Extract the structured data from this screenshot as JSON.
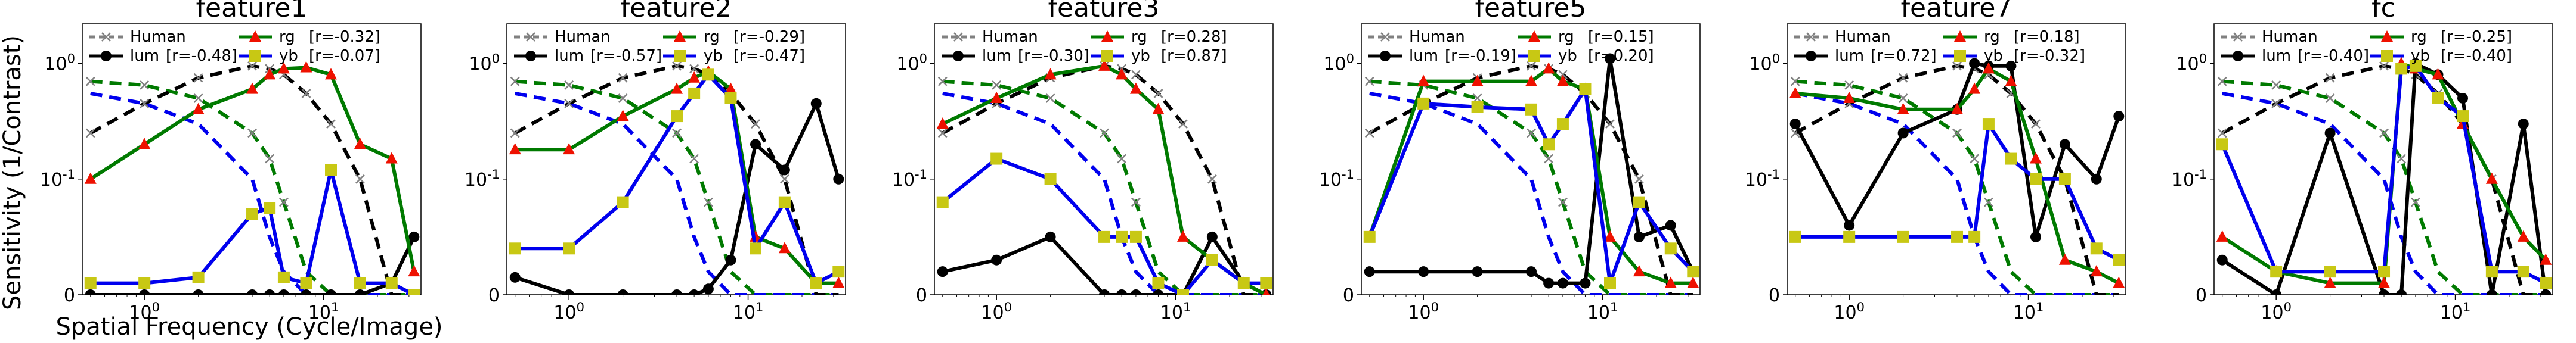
{
  "figure": {
    "ylabel": "Sensitivity (1/Contrast)",
    "xlabel": "Spatial Frequency (Cycle/Image)"
  },
  "colors": {
    "human": "#808080",
    "lum": "#000000",
    "rg": "#007a00",
    "yb": "#0000ee",
    "rg_marker": "#ee1100",
    "yb_marker": "#c8c814"
  },
  "chart_data": [
    {
      "type": "line",
      "title": "feature1",
      "xscale": "log",
      "yscale": "symlog",
      "xlim": [
        0.45,
        35
      ],
      "ylim": [
        0,
        2.2
      ],
      "xticks": [
        "10^0",
        "10^1"
      ],
      "yticks": [
        "0",
        "10^-1",
        "10^0"
      ],
      "legend": [
        {
          "key": "human",
          "label": "Human",
          "r": ""
        },
        {
          "key": "lum",
          "label": "lum",
          "r": "[r=-0.48]"
        },
        {
          "key": "rg",
          "label": "rg",
          "r": "[r=-0.32]"
        },
        {
          "key": "yb",
          "label": "yb",
          "r": "[r=-0.07]"
        }
      ],
      "x": [
        0.5,
        1,
        2,
        4,
        5,
        6,
        8,
        11,
        16,
        24,
        32
      ],
      "human": {
        "lum": [
          0.25,
          0.45,
          0.75,
          0.95,
          0.9,
          0.8,
          0.55,
          0.3,
          0.1,
          0.0,
          0.0
        ],
        "rg": [
          0.7,
          0.65,
          0.5,
          0.25,
          0.15,
          0.08,
          0.02,
          0.0,
          0.0,
          0.0,
          0.0
        ],
        "yb": [
          0.55,
          0.45,
          0.3,
          0.1,
          0.05,
          0.02,
          0.0,
          0.0,
          0.0,
          0.0,
          0.0
        ]
      },
      "series": [
        {
          "name": "lum",
          "values": [
            0.0,
            0.0,
            0.0,
            0.0,
            0.0,
            0.0,
            0.0,
            0.0,
            0.0,
            0.01,
            0.05
          ]
        },
        {
          "name": "rg",
          "values": [
            0.1,
            0.2,
            0.4,
            0.6,
            0.8,
            0.9,
            0.92,
            0.8,
            0.2,
            0.15,
            0.02
          ]
        },
        {
          "name": "yb",
          "values": [
            0.01,
            0.01,
            0.015,
            0.07,
            0.075,
            0.015,
            0.01,
            0.12,
            0.01,
            0.01,
            0.0
          ]
        }
      ]
    },
    {
      "type": "line",
      "title": "feature2",
      "xscale": "log",
      "yscale": "symlog",
      "xlim": [
        0.45,
        35
      ],
      "ylim": [
        0,
        2.2
      ],
      "xticks": [
        "10^0",
        "10^1"
      ],
      "yticks": [
        "0",
        "10^-1",
        "10^0"
      ],
      "legend": [
        {
          "key": "human",
          "label": "Human",
          "r": ""
        },
        {
          "key": "lum",
          "label": "lum",
          "r": "[r=-0.57]"
        },
        {
          "key": "rg",
          "label": "rg",
          "r": "[r=-0.29]"
        },
        {
          "key": "yb",
          "label": "yb",
          "r": "[r=-0.47]"
        }
      ],
      "x": [
        0.5,
        1,
        2,
        4,
        5,
        6,
        8,
        11,
        16,
        24,
        32
      ],
      "human": {
        "lum": [
          0.25,
          0.45,
          0.75,
          0.95,
          0.9,
          0.8,
          0.55,
          0.3,
          0.1,
          0.0,
          0.0
        ],
        "rg": [
          0.7,
          0.65,
          0.5,
          0.25,
          0.15,
          0.08,
          0.02,
          0.0,
          0.0,
          0.0,
          0.0
        ],
        "yb": [
          0.55,
          0.45,
          0.3,
          0.1,
          0.05,
          0.02,
          0.0,
          0.0,
          0.0,
          0.0,
          0.0
        ]
      },
      "series": [
        {
          "name": "lum",
          "values": [
            0.015,
            0.0,
            0.0,
            0.0,
            0.0,
            0.005,
            0.03,
            0.2,
            0.12,
            0.45,
            0.1
          ]
        },
        {
          "name": "rg",
          "values": [
            0.18,
            0.18,
            0.35,
            0.6,
            0.75,
            0.85,
            0.6,
            0.05,
            0.04,
            0.01,
            0.01
          ]
        },
        {
          "name": "yb",
          "values": [
            0.04,
            0.04,
            0.08,
            0.35,
            0.55,
            0.8,
            0.5,
            0.04,
            0.08,
            0.01,
            0.02
          ]
        }
      ]
    },
    {
      "type": "line",
      "title": "feature3",
      "xscale": "log",
      "yscale": "symlog",
      "xlim": [
        0.45,
        35
      ],
      "ylim": [
        0,
        2.2
      ],
      "xticks": [
        "10^0",
        "10^1"
      ],
      "yticks": [
        "0",
        "10^-1",
        "10^0"
      ],
      "legend": [
        {
          "key": "human",
          "label": "Human",
          "r": ""
        },
        {
          "key": "lum",
          "label": "lum",
          "r": "[r=-0.30]"
        },
        {
          "key": "rg",
          "label": "rg",
          "r": "[r=0.28]"
        },
        {
          "key": "yb",
          "label": "yb",
          "r": "[r=0.87]"
        }
      ],
      "x": [
        0.5,
        1,
        2,
        4,
        5,
        6,
        8,
        11,
        16,
        24,
        32
      ],
      "human": {
        "lum": [
          0.25,
          0.45,
          0.75,
          0.95,
          0.9,
          0.8,
          0.55,
          0.3,
          0.1,
          0.0,
          0.0
        ],
        "rg": [
          0.7,
          0.65,
          0.5,
          0.25,
          0.15,
          0.08,
          0.02,
          0.0,
          0.0,
          0.0,
          0.0
        ],
        "yb": [
          0.55,
          0.45,
          0.3,
          0.1,
          0.05,
          0.02,
          0.0,
          0.0,
          0.0,
          0.0,
          0.0
        ]
      },
      "series": [
        {
          "name": "lum",
          "values": [
            0.02,
            0.03,
            0.05,
            0.0,
            0.0,
            0.0,
            0.0,
            0.0,
            0.05,
            0.01,
            0.0
          ]
        },
        {
          "name": "rg",
          "values": [
            0.3,
            0.5,
            0.8,
            0.95,
            0.8,
            0.6,
            0.4,
            0.05,
            0.03,
            0.01,
            0.0
          ]
        },
        {
          "name": "yb",
          "values": [
            0.08,
            0.15,
            0.1,
            0.05,
            0.05,
            0.05,
            0.01,
            0.0,
            0.03,
            0.01,
            0.01
          ]
        }
      ]
    },
    {
      "type": "line",
      "title": "feature5",
      "xscale": "log",
      "yscale": "symlog",
      "xlim": [
        0.45,
        35
      ],
      "ylim": [
        0,
        2.2
      ],
      "xticks": [
        "10^0",
        "10^1"
      ],
      "yticks": [
        "0",
        "10^-1",
        "10^0"
      ],
      "legend": [
        {
          "key": "human",
          "label": "Human",
          "r": ""
        },
        {
          "key": "lum",
          "label": "lum",
          "r": "[r=-0.19]"
        },
        {
          "key": "rg",
          "label": "rg",
          "r": "[r=0.15]"
        },
        {
          "key": "yb",
          "label": "yb",
          "r": "[r=0.20]"
        }
      ],
      "x": [
        0.5,
        1,
        2,
        4,
        5,
        6,
        8,
        11,
        16,
        24,
        32
      ],
      "human": {
        "lum": [
          0.25,
          0.45,
          0.75,
          0.95,
          0.9,
          0.8,
          0.55,
          0.3,
          0.1,
          0.0,
          0.0
        ],
        "rg": [
          0.7,
          0.65,
          0.5,
          0.25,
          0.15,
          0.08,
          0.02,
          0.0,
          0.0,
          0.0,
          0.0
        ],
        "yb": [
          0.55,
          0.45,
          0.3,
          0.1,
          0.05,
          0.02,
          0.0,
          0.0,
          0.0,
          0.0,
          0.0
        ]
      },
      "series": [
        {
          "name": "lum",
          "values": [
            0.02,
            0.02,
            0.02,
            0.02,
            0.01,
            0.01,
            0.01,
            1.1,
            0.05,
            0.06,
            0.02
          ]
        },
        {
          "name": "rg",
          "values": [
            0.05,
            0.7,
            0.7,
            0.7,
            0.9,
            0.7,
            0.6,
            0.05,
            0.02,
            0.01,
            0.01
          ]
        },
        {
          "name": "yb",
          "values": [
            0.05,
            0.45,
            0.42,
            0.4,
            0.2,
            0.3,
            0.6,
            0.01,
            0.08,
            0.04,
            0.02
          ]
        }
      ]
    },
    {
      "type": "line",
      "title": "feature7",
      "xscale": "log",
      "yscale": "symlog",
      "xlim": [
        0.45,
        35
      ],
      "ylim": [
        0,
        2.2
      ],
      "xticks": [
        "10^0",
        "10^1"
      ],
      "yticks": [
        "0",
        "10^-1",
        "10^0"
      ],
      "legend": [
        {
          "key": "human",
          "label": "Human",
          "r": ""
        },
        {
          "key": "lum",
          "label": "lum",
          "r": "[r=0.72]"
        },
        {
          "key": "rg",
          "label": "rg",
          "r": "[r=0.18]"
        },
        {
          "key": "yb",
          "label": "yb",
          "r": "[r=-0.32]"
        }
      ],
      "x": [
        0.5,
        1,
        2,
        4,
        5,
        6,
        8,
        11,
        16,
        24,
        32
      ],
      "human": {
        "lum": [
          0.25,
          0.45,
          0.75,
          0.95,
          0.9,
          0.8,
          0.55,
          0.3,
          0.1,
          0.0,
          0.0
        ],
        "rg": [
          0.7,
          0.65,
          0.5,
          0.25,
          0.15,
          0.08,
          0.02,
          0.0,
          0.0,
          0.0,
          0.0
        ],
        "yb": [
          0.55,
          0.45,
          0.3,
          0.1,
          0.05,
          0.02,
          0.0,
          0.0,
          0.0,
          0.0,
          0.0
        ]
      },
      "series": [
        {
          "name": "lum",
          "values": [
            0.3,
            0.06,
            0.25,
            0.4,
            1.0,
            0.95,
            0.95,
            0.05,
            0.2,
            0.1,
            0.35
          ]
        },
        {
          "name": "rg",
          "values": [
            0.55,
            0.5,
            0.4,
            0.4,
            0.6,
            0.9,
            0.7,
            0.15,
            0.03,
            0.02,
            0.01
          ]
        },
        {
          "name": "yb",
          "values": [
            0.05,
            0.05,
            0.05,
            0.05,
            0.05,
            0.3,
            0.15,
            0.1,
            0.1,
            0.04,
            0.03
          ]
        }
      ]
    },
    {
      "type": "line",
      "title": "fc",
      "xscale": "log",
      "yscale": "symlog",
      "xlim": [
        0.45,
        35
      ],
      "ylim": [
        0,
        2.2
      ],
      "xticks": [
        "10^0",
        "10^1"
      ],
      "yticks": [
        "0",
        "10^-1",
        "10^0"
      ],
      "legend": [
        {
          "key": "human",
          "label": "Human",
          "r": ""
        },
        {
          "key": "lum",
          "label": "lum",
          "r": "[r=-0.40]"
        },
        {
          "key": "rg",
          "label": "rg",
          "r": "[r=-0.25]"
        },
        {
          "key": "yb",
          "label": "yb",
          "r": "[r=-0.40]"
        }
      ],
      "x": [
        0.5,
        1,
        2,
        4,
        5,
        6,
        8,
        11,
        16,
        24,
        32
      ],
      "human": {
        "lum": [
          0.25,
          0.45,
          0.75,
          0.95,
          0.9,
          0.8,
          0.55,
          0.3,
          0.1,
          0.0,
          0.0
        ],
        "rg": [
          0.7,
          0.65,
          0.5,
          0.25,
          0.15,
          0.08,
          0.02,
          0.0,
          0.0,
          0.0,
          0.0
        ],
        "yb": [
          0.55,
          0.45,
          0.3,
          0.1,
          0.05,
          0.02,
          0.0,
          0.0,
          0.0,
          0.0,
          0.0
        ]
      },
      "series": [
        {
          "name": "lum",
          "values": [
            0.03,
            0.0,
            0.25,
            0.0,
            0.0,
            1.0,
            0.8,
            0.5,
            0.0,
            0.3,
            0.0
          ]
        },
        {
          "name": "rg",
          "values": [
            0.05,
            0.02,
            0.01,
            0.01,
            1.0,
            0.9,
            0.8,
            0.3,
            0.1,
            0.05,
            0.03
          ]
        },
        {
          "name": "yb",
          "values": [
            0.2,
            0.02,
            0.02,
            0.02,
            0.9,
            0.95,
            0.5,
            0.35,
            0.02,
            0.02,
            0.01
          ]
        }
      ]
    }
  ]
}
